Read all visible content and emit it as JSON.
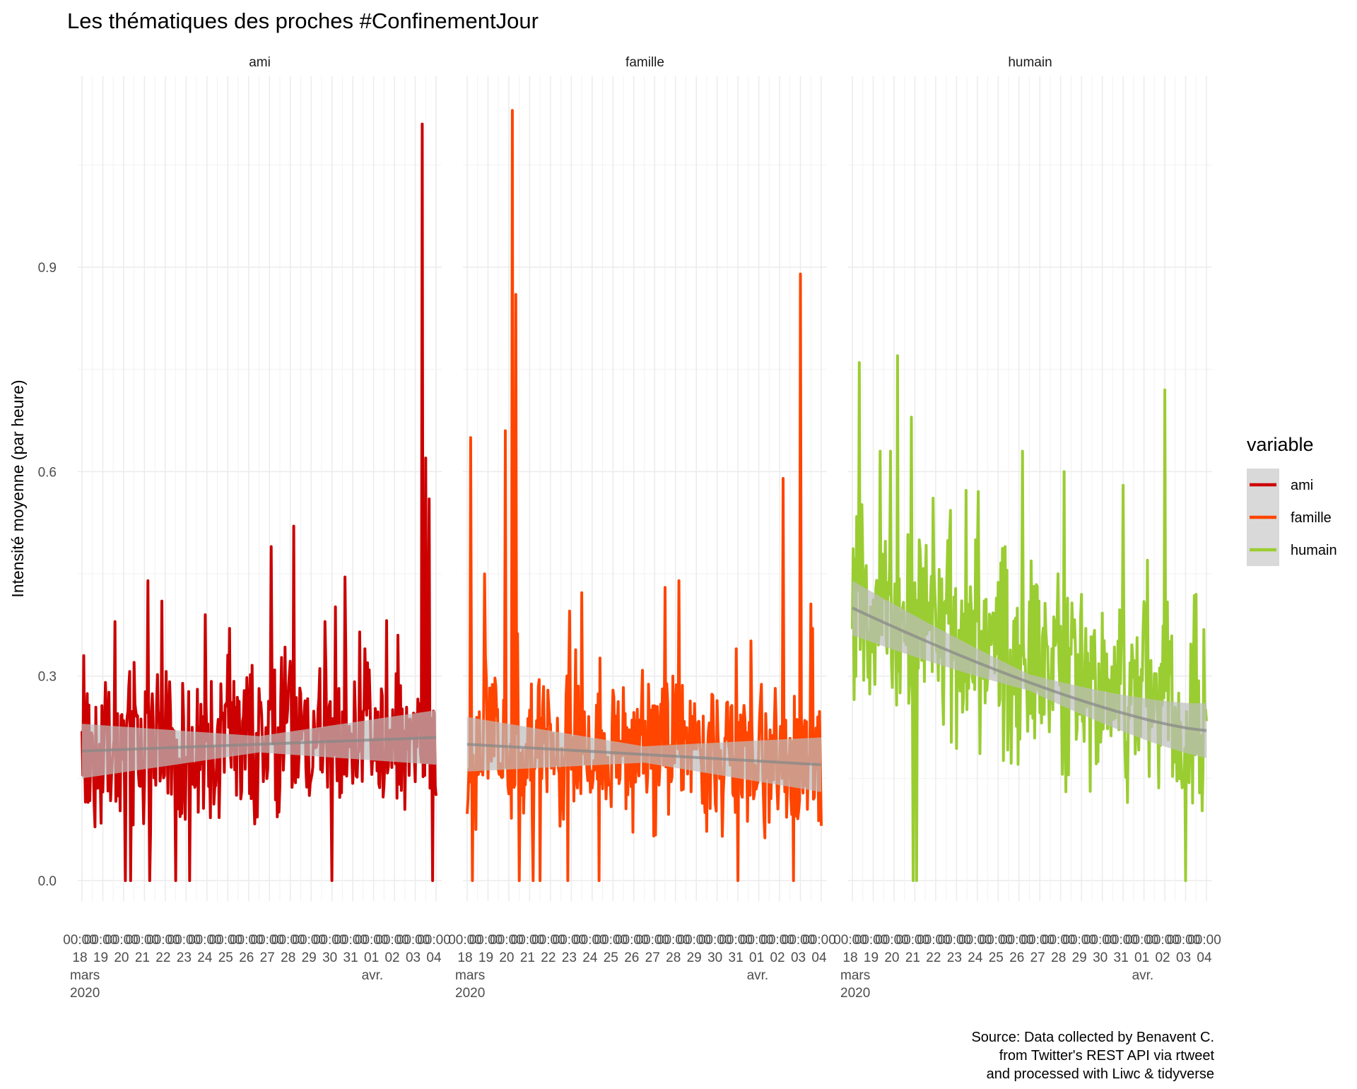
{
  "chart_data": {
    "type": "line",
    "title": "Les thématiques des proches #ConfinementJour",
    "ylabel": "Intensité moyenne (par heure)",
    "xlabel": "",
    "ylim": [
      -0.03,
      1.18
    ],
    "y_ticks": [
      0.0,
      0.3,
      0.6,
      0.9
    ],
    "y_tick_labels": [
      "0.0",
      "0.3",
      "0.6",
      "0.9"
    ],
    "x_range": [
      "2020-03-18 00:00",
      "2020-04-04 00:00"
    ],
    "x_tick_dates": [
      "2020-03-18",
      "2020-03-19",
      "2020-03-20",
      "2020-03-21",
      "2020-03-22",
      "2020-03-23",
      "2020-03-24",
      "2020-03-25",
      "2020-03-26",
      "2020-03-27",
      "2020-03-28",
      "2020-03-29",
      "2020-03-30",
      "2020-03-31",
      "2020-04-01",
      "2020-04-02",
      "2020-04-03",
      "2020-04-04"
    ],
    "x_tick_labels": [
      "00:00\n18\nmars\n2020",
      "00:00\n19",
      "00:00\n20",
      "00:00\n21",
      "00:00\n22",
      "00:00\n23",
      "00:00\n24",
      "00:00\n25",
      "00:00\n26",
      "00:00\n27",
      "00:00\n28",
      "00:00\n29",
      "00:00\n30",
      "00:00\n31",
      "00:00\n01\navr.",
      "00:00\n02",
      "00:00\n03",
      "00:00\n04"
    ],
    "grid": true,
    "legend": {
      "title": "variable",
      "position": "right",
      "entries": [
        "ami",
        "famille",
        "humain"
      ]
    },
    "colors": {
      "ami": "#CC0000",
      "famille": "#FF4500",
      "humain": "#9ACD32",
      "smooth": "#888888",
      "band": "#bdbdbd",
      "grid": "#ebebeb"
    },
    "panels": [
      {
        "name": "ami",
        "color": "#CC0000",
        "baseline": 0.2,
        "trend": [
          0.19,
          0.21
        ],
        "smooth": {
          "x": [
            "2020-03-18 00:00",
            "2020-04-04 00:00"
          ],
          "y": [
            0.19,
            0.21
          ]
        },
        "peaks": [
          {
            "x": "2020-03-18 02:00",
            "y": 0.33
          },
          {
            "x": "2020-03-19 14:00",
            "y": 0.38
          },
          {
            "x": "2020-03-20 12:00",
            "y": 0.32
          },
          {
            "x": "2020-03-21 04:00",
            "y": 0.44
          },
          {
            "x": "2020-03-21 20:00",
            "y": 0.41
          },
          {
            "x": "2020-03-23 22:00",
            "y": 0.39
          },
          {
            "x": "2020-03-25 02:00",
            "y": 0.37
          },
          {
            "x": "2020-03-27 02:00",
            "y": 0.49
          },
          {
            "x": "2020-03-28 04:00",
            "y": 0.52
          },
          {
            "x": "2020-03-29 16:00",
            "y": 0.38
          },
          {
            "x": "2020-03-31 14:00",
            "y": 0.34
          },
          {
            "x": "2020-04-02 04:00",
            "y": 0.36
          },
          {
            "x": "2020-04-03 08:00",
            "y": 1.11
          },
          {
            "x": "2020-04-03 12:00",
            "y": 0.62
          },
          {
            "x": "2020-04-03 16:00",
            "y": 0.56
          }
        ],
        "drops": [
          "2020-03-20 02:00",
          "2020-03-20 08:00",
          "2020-03-21 06:00",
          "2020-03-22 12:00",
          "2020-03-23 04:00",
          "2020-03-27 02:00",
          "2020-03-28 04:00",
          "2020-03-30 00:00",
          "2020-04-02 04:00",
          "2020-04-03 20:00"
        ]
      },
      {
        "name": "famille",
        "color": "#FF4500",
        "baseline": 0.19,
        "trend": [
          0.2,
          0.17
        ],
        "smooth": {
          "x": [
            "2020-03-18 00:00",
            "2020-04-04 00:00"
          ],
          "y": [
            0.2,
            0.17
          ]
        },
        "peaks": [
          {
            "x": "2020-03-18 04:00",
            "y": 0.65
          },
          {
            "x": "2020-03-18 20:00",
            "y": 0.45
          },
          {
            "x": "2020-03-19 20:00",
            "y": 0.66
          },
          {
            "x": "2020-03-20 04:00",
            "y": 1.13
          },
          {
            "x": "2020-03-20 08:00",
            "y": 0.86
          },
          {
            "x": "2020-03-27 12:00",
            "y": 0.43
          },
          {
            "x": "2020-03-28 04:00",
            "y": 0.44
          },
          {
            "x": "2020-03-30 22:00",
            "y": 0.34
          },
          {
            "x": "2020-04-02 04:00",
            "y": 0.59
          },
          {
            "x": "2020-04-03 00:00",
            "y": 0.89
          },
          {
            "x": "2020-04-03 14:00",
            "y": 0.37
          }
        ],
        "drops": [
          "2020-03-18 06:00",
          "2020-03-19 20:00",
          "2020-03-20 12:00",
          "2020-03-21 04:00",
          "2020-03-21 12:00",
          "2020-03-22 20:00",
          "2020-03-24 08:00",
          "2020-03-28 04:00",
          "2020-03-31 00:00",
          "2020-04-02 16:00",
          "2020-04-03 00:00",
          "2020-04-03 14:00"
        ]
      },
      {
        "name": "humain",
        "color": "#9ACD32",
        "baseline": 0.32,
        "trend": [
          0.4,
          0.22
        ],
        "smooth": {
          "x": [
            "2020-03-18 00:00",
            "2020-04-04 00:00"
          ],
          "y": [
            0.4,
            0.22
          ]
        },
        "peaks": [
          {
            "x": "2020-03-18 08:00",
            "y": 0.76
          },
          {
            "x": "2020-03-19 08:00",
            "y": 0.63
          },
          {
            "x": "2020-03-19 20:00",
            "y": 0.63
          },
          {
            "x": "2020-03-20 04:00",
            "y": 0.77
          },
          {
            "x": "2020-03-20 20:00",
            "y": 0.68
          },
          {
            "x": "2020-03-22 16:00",
            "y": 0.5
          },
          {
            "x": "2020-03-23 22:00",
            "y": 0.5
          },
          {
            "x": "2020-03-25 08:00",
            "y": 0.49
          },
          {
            "x": "2020-03-26 04:00",
            "y": 0.63
          },
          {
            "x": "2020-03-28 04:00",
            "y": 0.6
          },
          {
            "x": "2020-03-31 00:00",
            "y": 0.58
          },
          {
            "x": "2020-04-01 04:00",
            "y": 0.47
          },
          {
            "x": "2020-04-02 00:00",
            "y": 0.72
          },
          {
            "x": "2020-04-03 12:00",
            "y": 0.42
          }
        ],
        "drops": [
          "2020-03-20 22:00",
          "2020-03-21 02:00",
          "2020-03-31 00:00",
          "2020-04-03 00:00",
          "2020-04-03 12:00"
        ]
      }
    ],
    "caption": [
      "Source: Data collected by Benavent C.",
      "from Twitter's REST API via rtweet",
      "and processed with Liwc & tidyverse"
    ]
  }
}
